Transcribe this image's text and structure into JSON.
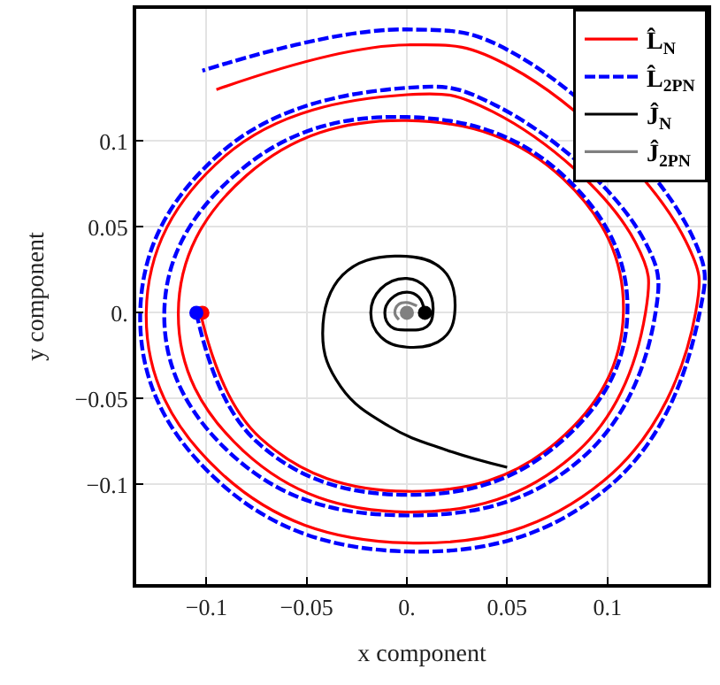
{
  "chart_data": {
    "type": "line",
    "xlabel": "x component",
    "ylabel": "y component",
    "xlim": [
      -0.135,
      0.15
    ],
    "ylim": [
      -0.158,
      0.177
    ],
    "xticks": [
      {
        "value": -0.1,
        "label": "−0.1"
      },
      {
        "value": -0.05,
        "label": "−0.05"
      },
      {
        "value": 0,
        "label": "0."
      },
      0.05,
      0.1
    ],
    "yticks": [
      {
        "value": -0.1,
        "label": "−0.1"
      },
      {
        "value": -0.05,
        "label": "−0.05"
      },
      {
        "value": 0,
        "label": "0."
      },
      0.05,
      0.1
    ],
    "grid": true,
    "legend": "top right",
    "series": [
      {
        "name": "L̂$_{N}$",
        "color": "#ff0000",
        "line_style": "solid",
        "x": [
          -0.103,
          -0.073,
          0,
          0.075,
          0.108,
          0.078,
          0,
          -0.08,
          -0.114,
          -0.081,
          0,
          0.083,
          0.119,
          0.114,
          0.043,
          0,
          -0.091,
          -0.13,
          -0.093,
          0,
          0.098,
          0.144,
          0.139,
          0.052,
          0,
          -0.095
        ],
        "values": [
          0,
          -0.073,
          -0.104,
          -0.075,
          0,
          0.078,
          0.112,
          0.08,
          0,
          -0.081,
          -0.116,
          -0.083,
          0,
          0.041,
          0.117,
          0.127,
          0.091,
          0,
          -0.093,
          -0.134,
          -0.098,
          0,
          0.042,
          0.143,
          0.156,
          0.13
        ]
      },
      {
        "name": "L̂$_{2PN}$",
        "color": "#0000ff",
        "line_style": "dashed",
        "x": [
          -0.105,
          -0.075,
          0,
          0.076,
          0.11,
          0.079,
          0,
          -0.083,
          -0.121,
          -0.085,
          0,
          0.086,
          0.124,
          0.118,
          0.044,
          0,
          -0.093,
          -0.133,
          -0.096,
          0,
          0.101,
          0.146,
          0.143,
          0.055,
          0,
          -0.102
        ],
        "values": [
          0,
          -0.075,
          -0.106,
          -0.076,
          0,
          0.079,
          0.114,
          0.083,
          0,
          -0.085,
          -0.118,
          -0.086,
          0,
          0.043,
          0.121,
          0.131,
          0.093,
          0,
          -0.096,
          -0.139,
          -0.101,
          0,
          0.043,
          0.15,
          0.165,
          0.141
        ]
      },
      {
        "name": "Ĵ$_{N}$",
        "color": "#000000",
        "line_style": "solid",
        "x": [
          0.009,
          0.006,
          0,
          -0.008,
          -0.011,
          -0.008,
          0,
          0.01,
          0.013,
          0.01,
          0,
          -0.013,
          -0.018,
          -0.013,
          0,
          0.018,
          0.024,
          0.018,
          -0.006,
          -0.032,
          -0.042,
          -0.033,
          -0.009,
          0.02,
          0.05
        ],
        "values": [
          0,
          0.009,
          0.012,
          0.008,
          0,
          -0.008,
          -0.01,
          -0.008,
          0,
          0.014,
          0.02,
          0.014,
          0,
          -0.014,
          -0.02,
          -0.015,
          0.002,
          0.025,
          0.033,
          0.022,
          -0.012,
          -0.043,
          -0.066,
          -0.08,
          -0.09
        ]
      },
      {
        "name": "Ĵ$_{2PN}$",
        "color": "#808080",
        "line_style": "solid",
        "x": [
          -0.004,
          -0.006,
          -0.004,
          0,
          0.005
        ],
        "values": [
          -0.004,
          0,
          0.005,
          0.006,
          0.004
        ]
      },
      {
        "type": "scatter",
        "marker": "circle",
        "color": "#ff0000",
        "x": [
          -0.102
        ],
        "values": [
          0
        ]
      },
      {
        "type": "scatter",
        "marker": "circle",
        "color": "#0000ff",
        "x": [
          -0.105
        ],
        "values": [
          0
        ]
      },
      {
        "type": "scatter",
        "marker": "circle",
        "color": "#000000",
        "x": [
          0.009
        ],
        "values": [
          0
        ]
      },
      {
        "type": "scatter",
        "marker": "circle",
        "color": "#808080",
        "x": [
          0
        ],
        "values": [
          0
        ]
      }
    ]
  }
}
